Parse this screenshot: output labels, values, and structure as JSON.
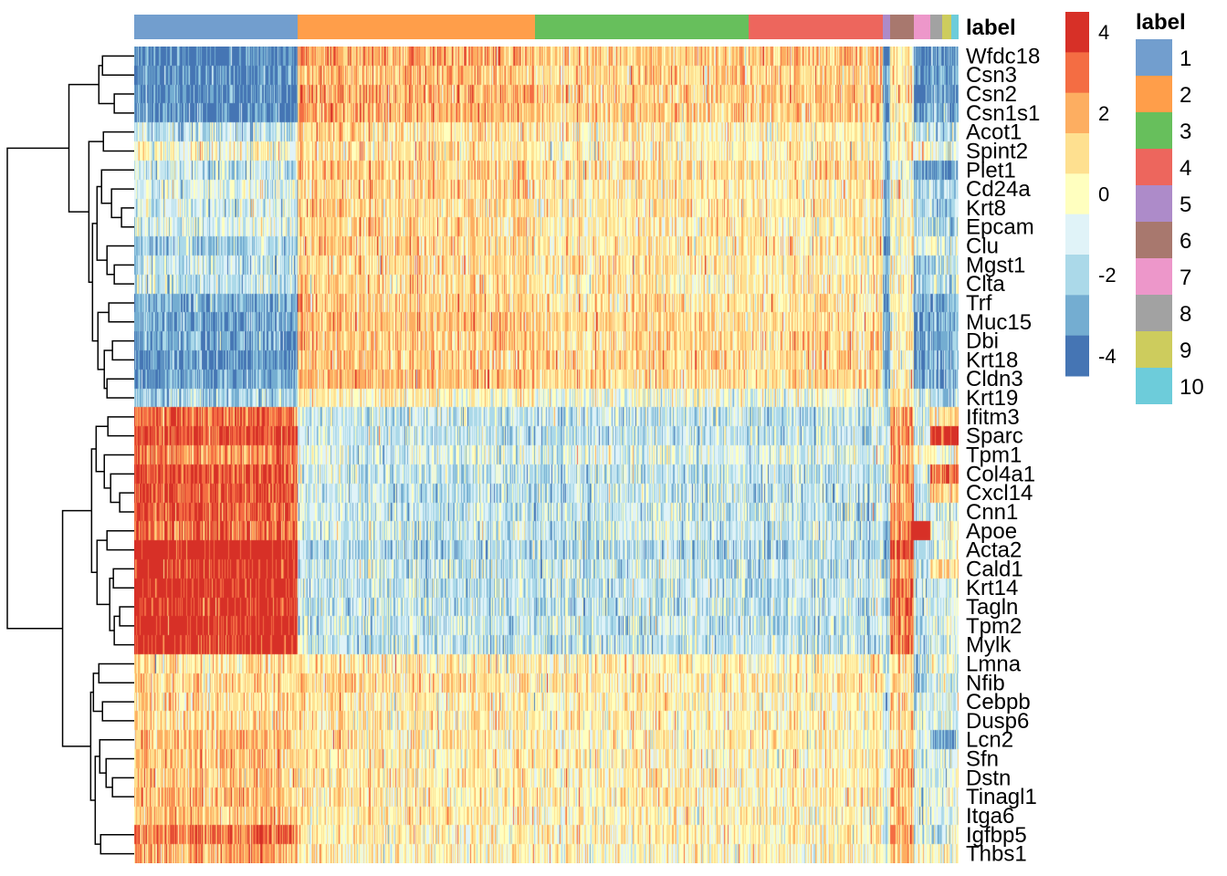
{
  "chart_data": {
    "type": "heatmap",
    "annotation_title": "label",
    "labels": [
      "1",
      "2",
      "3",
      "4",
      "5",
      "6",
      "7",
      "8",
      "9",
      "10"
    ],
    "label_colors": [
      "#729ECE",
      "#FF9E4A",
      "#67BF5C",
      "#ED665D",
      "#AD8BC9",
      "#A8786E",
      "#ED97CA",
      "#A2A2A2",
      "#CDCC5D",
      "#6DCCDA"
    ],
    "approx_cells_per_label": [
      179,
      260,
      234,
      147,
      8,
      26,
      18,
      13,
      10,
      8
    ],
    "color_scale": {
      "ticks": [
        "4",
        "2",
        "0",
        "-2",
        "-4"
      ],
      "tick_values": [
        4,
        2,
        0,
        -2,
        -4
      ],
      "range": [
        -4.5,
        4.5
      ],
      "colors": [
        "#D73027",
        "#F46D43",
        "#FDAE61",
        "#FEE090",
        "#FFFFBF",
        "#E0F3F8",
        "#ABD9E9",
        "#74ADD1",
        "#4575B4"
      ]
    },
    "genes": [
      "Wfdc18",
      "Csn3",
      "Csn2",
      "Csn1s1",
      "Acot1",
      "Spint2",
      "Plet1",
      "Cd24a",
      "Krt8",
      "Epcam",
      "Clu",
      "Mgst1",
      "Clta",
      "Trf",
      "Muc15",
      "Dbi",
      "Krt18",
      "Cldn3",
      "Krt19",
      "Ifitm3",
      "Sparc",
      "Tpm1",
      "Col4a1",
      "Cxcl14",
      "Cnn1",
      "Apoe",
      "Acta2",
      "Cald1",
      "Krt14",
      "Tagln",
      "Tpm2",
      "Mylk",
      "Lmna",
      "Nfib",
      "Cebpb",
      "Dusp6",
      "Lcn2",
      "Sfn",
      "Dstn",
      "Tinagl1",
      "Itga6",
      "Igfbp5",
      "Thbs1"
    ],
    "approx_mean_by_label": [
      [
        -3.8,
        2,
        1.2,
        1.5,
        -3,
        0.5,
        -4,
        -3.5,
        -3.5,
        -3.5
      ],
      [
        -3.6,
        1.5,
        1,
        1.2,
        -3,
        0.5,
        -3.5,
        -3,
        -3,
        -3
      ],
      [
        -3.8,
        2,
        1.2,
        1.5,
        -3,
        0.5,
        -4,
        -3.5,
        -3.5,
        -3.5
      ],
      [
        -3.6,
        1.8,
        1.2,
        1.4,
        -3,
        0.5,
        -3.5,
        -3,
        -3,
        -3
      ],
      [
        -1.5,
        0.8,
        0.3,
        0.3,
        -2,
        0.3,
        -1.5,
        -1.5,
        -1.5,
        -1.5
      ],
      [
        0,
        0.8,
        0.3,
        0.3,
        -2,
        0.3,
        0,
        -1,
        -1,
        -1
      ],
      [
        -1.5,
        1.2,
        0.8,
        0.8,
        -2.5,
        0,
        -3,
        -3,
        -3,
        -3
      ],
      [
        -1,
        1,
        0.5,
        0.5,
        -2.5,
        0,
        -2,
        -2,
        -2,
        -2
      ],
      [
        -1,
        1,
        0.5,
        0.5,
        -2.5,
        0,
        -2,
        -2,
        -2,
        -2
      ],
      [
        -1,
        1,
        0.5,
        0.5,
        -2.5,
        0,
        -2,
        -2,
        -2,
        -2
      ],
      [
        -2,
        1,
        0.5,
        0.5,
        -3,
        0,
        -1,
        -1,
        -1,
        -1
      ],
      [
        -1.5,
        1,
        0.5,
        0.5,
        -2,
        0,
        -2.5,
        -1.5,
        -1.5,
        -1.5
      ],
      [
        -1.5,
        1,
        0.5,
        0.5,
        -2,
        0,
        -2.5,
        -1.5,
        -1.5,
        -1.5
      ],
      [
        -3,
        1.2,
        0.7,
        0.7,
        -3,
        0.3,
        -3,
        -3,
        -3,
        -3
      ],
      [
        -3,
        1.5,
        1,
        1,
        -3,
        0,
        -3.5,
        -3,
        -3,
        -3
      ],
      [
        -3,
        1.3,
        1,
        1,
        -3,
        0.5,
        -3,
        -3,
        -3,
        -3
      ],
      [
        -3.5,
        1.3,
        1,
        1,
        -3,
        0,
        -3,
        -3,
        -3,
        -3
      ],
      [
        -3,
        1.5,
        1,
        1,
        -3,
        0.5,
        -3,
        -3,
        -3,
        -3
      ],
      [
        -2,
        0.3,
        -0.5,
        -0.5,
        -2,
        0.5,
        -1,
        -2,
        -2,
        -2
      ],
      [
        3,
        -1.5,
        -1.5,
        -1.5,
        -2,
        2,
        -1,
        1,
        1,
        1
      ],
      [
        3.5,
        -1.5,
        -1.5,
        -1.5,
        -1.5,
        2.5,
        -1.5,
        4.5,
        4.5,
        4.5
      ],
      [
        2.5,
        -1,
        -1,
        -1,
        -1.5,
        1.5,
        0,
        0,
        0,
        0
      ],
      [
        3.5,
        -1.5,
        -1.5,
        -1.5,
        -1.5,
        2.5,
        -1.5,
        3,
        3,
        3
      ],
      [
        3.5,
        -1.5,
        -1.5,
        -1.5,
        -1.5,
        2,
        -1.5,
        1,
        1,
        1
      ],
      [
        3.5,
        -1.5,
        -1.5,
        -1.5,
        -1.5,
        2,
        -1.5,
        -1,
        -1,
        -1
      ],
      [
        3,
        -1.3,
        -1.3,
        -1.3,
        -2,
        2.5,
        5,
        -0.5,
        -0.5,
        -0.5
      ],
      [
        4.8,
        -1.8,
        -1.8,
        -1.8,
        -2,
        3.5,
        -2,
        -1,
        -1,
        -1
      ],
      [
        4,
        -1.5,
        -1.5,
        -1.5,
        -1.5,
        2.5,
        -1.5,
        1,
        1,
        1
      ],
      [
        4.2,
        -1.5,
        -1.5,
        -1.5,
        -1.5,
        3,
        -1.5,
        -1,
        -1,
        -1
      ],
      [
        4.2,
        -1.5,
        -1.5,
        -1.5,
        -1.5,
        3,
        -1.5,
        -1,
        -1,
        -1
      ],
      [
        4.2,
        -1.5,
        -1.5,
        -1.5,
        -1.5,
        3,
        -1.5,
        -1,
        -1,
        -1
      ],
      [
        4.2,
        -1.5,
        -1.5,
        -1.5,
        -1.5,
        3,
        -1.5,
        -1,
        -1,
        -1
      ],
      [
        0.8,
        0.5,
        0.3,
        0.3,
        -1,
        0.8,
        -2,
        -0.5,
        -0.5,
        -0.5
      ],
      [
        1,
        0.8,
        0.5,
        0.5,
        -1,
        0.5,
        -2,
        -1,
        -1,
        -1
      ],
      [
        1,
        0.5,
        0.3,
        0.3,
        -1,
        1,
        -1,
        -1,
        -1,
        -1
      ],
      [
        1,
        0.5,
        0.3,
        0.3,
        -1,
        1,
        -1,
        -1,
        -1,
        -1
      ],
      [
        1.5,
        0.5,
        0.3,
        0.3,
        -1,
        0.5,
        -1,
        -3,
        -3,
        -3
      ],
      [
        1.5,
        0.5,
        0.3,
        0.3,
        -1,
        1.5,
        -1,
        -1,
        -1,
        -1
      ],
      [
        1.5,
        0.5,
        0.3,
        0.3,
        -1,
        1.5,
        -1,
        -1,
        -1,
        -1
      ],
      [
        1.5,
        0.5,
        0.3,
        0.3,
        -1,
        1.5,
        -1,
        -1,
        -1,
        -1
      ],
      [
        1.5,
        0.5,
        0.3,
        0.3,
        -1,
        1.5,
        -1,
        -1,
        -1,
        -1
      ],
      [
        3,
        0.3,
        0.3,
        0.3,
        -1,
        2,
        -1,
        -1,
        -1,
        -1
      ],
      [
        2,
        0.3,
        0,
        0,
        -1,
        1.5,
        0,
        0,
        0,
        0
      ]
    ],
    "row_dendrogram": [
      [
        [
          [
            0,
            1,
            3.5
          ],
          [
            2,
            3,
            2.2
          ],
          3.9
        ],
        [
          [
            4,
            5,
            3.4
          ],
          [
            [
              [
                6,
                [
                  7,
                  [
                    8,
                    9,
                    1.4
                  ],
                  2.5
                ],
                3.6
              ],
              [
                10,
                [
                  11,
                  12,
                  2.2
                ],
                3.0
              ],
              4.1
            ],
            [
              [
                13,
                14,
                2.8
              ],
              [
                [
                  15,
                  16,
                  2.4
                ],
                [
                  17,
                  18,
                  3.0
                ],
                3.3
              ],
              4.0
            ],
            4.6
          ],
          5.0
        ],
        7.2
      ],
      [
        [
          [
            [
              19,
              20,
              2.9
            ],
            [
              21,
              [
                22,
                [
                  23,
                  24,
                  1.6
                ],
                2.6
              ],
              3.3
            ],
            4.2
          ],
          [
            [
              25,
              26,
              3.0
            ],
            [
              [
                27,
                28,
                2.3
              ],
              [
                [
                  29,
                  30,
                  1.6
                ],
                31,
                2.2
              ],
              2.7
            ],
            4.1
          ],
          4.7
        ],
        [
          [
            [
              32,
              33,
              3.9
            ],
            [
              34,
              35,
              3.5
            ],
            4.5
          ],
          [
            [
              36,
              [
                37,
                [
                  38,
                  39,
                  2.4
                ],
                3.1
              ],
              3.8
            ],
            [
              41,
              42,
              3.7
            ],
            4.3
          ],
          4.8
        ],
        7.9
      ],
      14
    ]
  }
}
